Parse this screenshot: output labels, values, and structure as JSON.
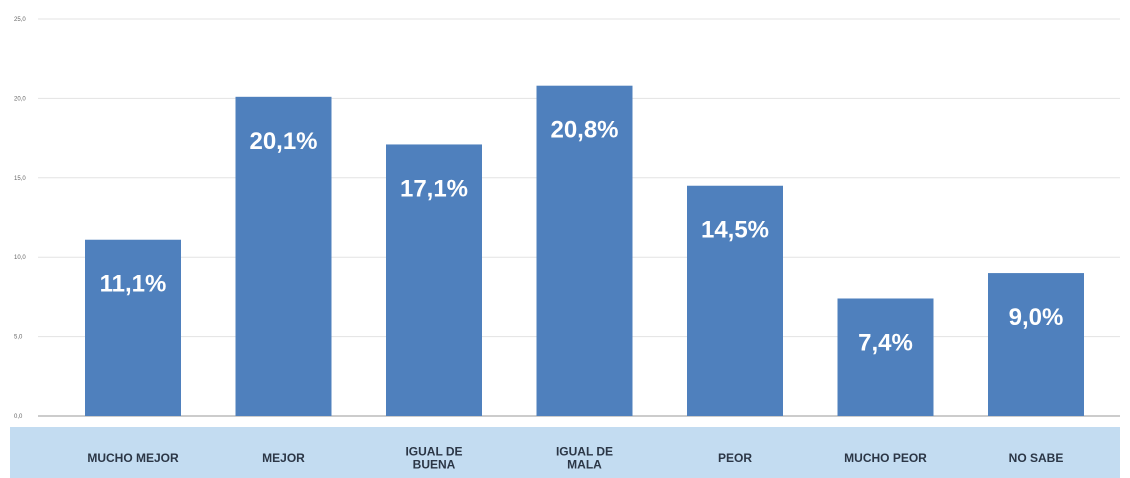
{
  "chart_data": {
    "type": "bar",
    "categories": [
      "MUCHO MEJOR",
      "MEJOR",
      "IGUAL DE\nBUENA",
      "IGUAL DE\nMALA",
      "PEOR",
      "MUCHO PEOR",
      "NO SABE"
    ],
    "values": [
      11.1,
      20.1,
      17.1,
      20.8,
      14.5,
      7.4,
      9.0
    ],
    "data_labels": [
      "11,1%",
      "20,1%",
      "17,1%",
      "20,8%",
      "14,5%",
      "7,4%",
      "9,0%"
    ],
    "yticks": [
      0,
      5,
      10,
      15,
      20,
      25
    ],
    "ytick_labels": [
      "0,0",
      "5,0",
      "10,0",
      "15,0",
      "20,0",
      "25,0"
    ],
    "ylim": [
      0,
      25
    ],
    "grid": true,
    "colors": {
      "bar": "#4f80bd",
      "category_band": "#c3dcf1",
      "grid": "#e3e3e3",
      "axis": "#9a9a9a",
      "data_label": "#ffffff",
      "category_text": "#2b3646"
    }
  }
}
